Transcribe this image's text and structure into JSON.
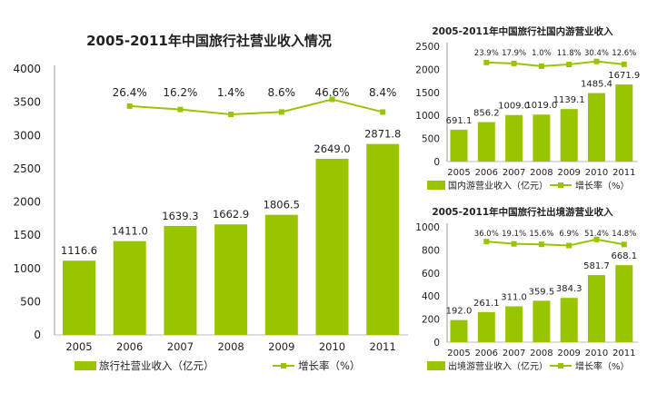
{
  "colors": {
    "bar": "#99c400",
    "line": "#99c400",
    "axis": "#bbbbbb",
    "text": "#222222"
  },
  "chart_data": [
    {
      "type": "bar+line",
      "title": "2005-2011年中国旅行社营业收入情况",
      "categories": [
        "2005",
        "2006",
        "2007",
        "2008",
        "2009",
        "2010",
        "2011"
      ],
      "ylim": [
        0,
        4000
      ],
      "yticks": [
        0,
        500,
        1000,
        1500,
        2000,
        2500,
        3000,
        3500,
        4000
      ],
      "series": [
        {
          "name": "旅行社营业收入（亿元）",
          "type": "bar",
          "values": [
            1116.6,
            1411.0,
            1639.3,
            1662.9,
            1806.5,
            2649.0,
            2871.8
          ],
          "labels": [
            "1116.6",
            "1411.0",
            "1639.3",
            "1662.9",
            "1806.5",
            "2649.0",
            "2871.8"
          ]
        },
        {
          "name": "增长率（%）",
          "type": "line",
          "values": [
            null,
            26.4,
            16.2,
            1.4,
            8.6,
            46.6,
            8.4
          ],
          "labels": [
            "",
            "26.4%",
            "16.2%",
            "1.4%",
            "8.6%",
            "46.6%",
            "8.4%"
          ]
        }
      ],
      "legend": "bottom"
    },
    {
      "type": "bar+line",
      "title": "2005-2011年中国旅行社国内游营业收入",
      "categories": [
        "2005",
        "2006",
        "2007",
        "2008",
        "2009",
        "2010",
        "2011"
      ],
      "ylim": [
        0,
        2500
      ],
      "yticks": [
        0,
        500,
        1000,
        1500,
        2000,
        2500
      ],
      "series": [
        {
          "name": "国内游营业收入（亿元）",
          "type": "bar",
          "values": [
            691.1,
            856.2,
            1009.0,
            1019.0,
            1139.1,
            1485.4,
            1671.9
          ],
          "labels": [
            "691.1",
            "856.2",
            "1009.0",
            "1019.0",
            "1139.1",
            "1485.4",
            "1671.9"
          ]
        },
        {
          "name": "增长率（%）",
          "type": "line",
          "values": [
            null,
            23.9,
            17.9,
            1.0,
            11.8,
            30.4,
            12.6
          ],
          "labels": [
            "",
            "23.9%",
            "17.9%",
            "1.0%",
            "11.8%",
            "30.4%",
            "12.6%"
          ]
        }
      ],
      "legend": "bottom"
    },
    {
      "type": "bar+line",
      "title": "2005-2011年中国旅行社出境游营业收入",
      "categories": [
        "2005",
        "2006",
        "2007",
        "2008",
        "2009",
        "2010",
        "2011"
      ],
      "ylim": [
        0,
        1000
      ],
      "yticks": [
        0,
        200,
        400,
        600,
        800,
        1000
      ],
      "series": [
        {
          "name": "出境游营业收入（亿元）",
          "type": "bar",
          "values": [
            192.0,
            261.1,
            311.0,
            359.5,
            384.3,
            581.7,
            668.1
          ],
          "labels": [
            "192.0",
            "261.1",
            "311.0",
            "359.5",
            "384.3",
            "581.7",
            "668.1"
          ]
        },
        {
          "name": "增长率（%）",
          "type": "line",
          "values": [
            null,
            36.0,
            19.1,
            15.6,
            6.9,
            51.4,
            14.8
          ],
          "labels": [
            "",
            "36.0%",
            "19.1%",
            "15.6%",
            "6.9%",
            "51.4%",
            "14.8%"
          ]
        }
      ],
      "legend": "bottom"
    }
  ]
}
